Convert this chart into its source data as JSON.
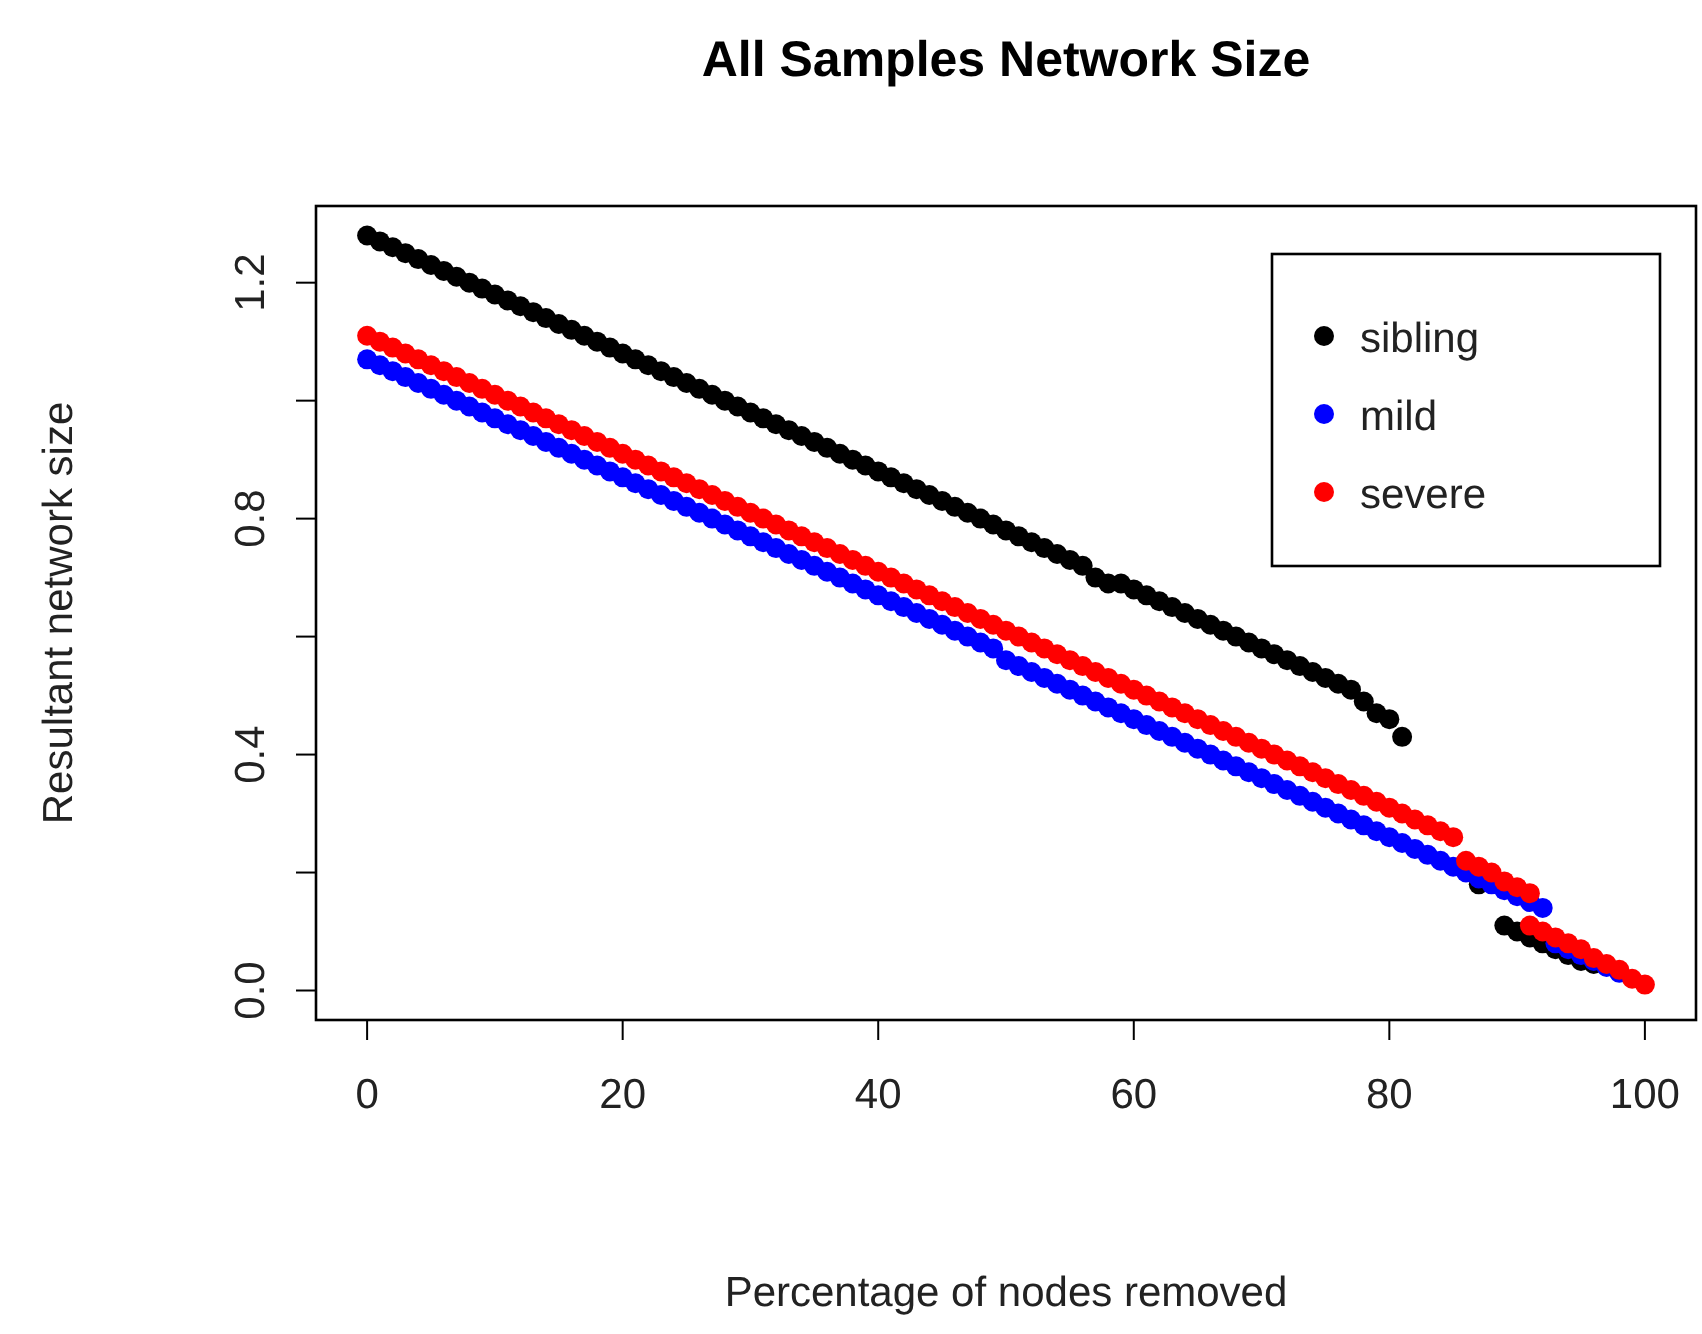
{
  "chart_data": {
    "type": "scatter",
    "title": "All Samples Network Size",
    "xlabel": "Percentage of nodes removed",
    "ylabel": "Resultant network size",
    "xlim": [
      -4,
      104
    ],
    "ylim": [
      -0.05,
      1.33
    ],
    "xticks": [
      0,
      20,
      40,
      60,
      80,
      100
    ],
    "yticks": [
      {
        "value": 0,
        "label": "0.0"
      },
      {
        "value": 0.2,
        "label": null
      },
      0.4,
      {
        "value": 0.6,
        "label": null
      },
      0.8,
      {
        "value": 1.0,
        "label": null
      },
      1.2
    ],
    "grid": false,
    "legend": "top right",
    "marker": "circle",
    "series": [
      {
        "name": "sibling",
        "color": "#000000",
        "x": [
          0,
          1,
          2,
          3,
          4,
          5,
          6,
          7,
          8,
          9,
          10,
          11,
          12,
          13,
          14,
          15,
          16,
          17,
          18,
          19,
          20,
          21,
          22,
          23,
          24,
          25,
          26,
          27,
          28,
          29,
          30,
          31,
          32,
          33,
          34,
          35,
          36,
          37,
          38,
          39,
          40,
          41,
          42,
          43,
          44,
          45,
          46,
          47,
          48,
          49,
          50,
          51,
          52,
          53,
          54,
          55,
          56,
          57,
          58,
          59,
          60,
          61,
          62,
          63,
          64,
          65,
          66,
          67,
          68,
          69,
          70,
          71,
          72,
          73,
          74,
          75,
          76,
          77,
          78,
          79,
          80,
          81,
          87,
          89,
          90,
          91,
          92,
          93,
          94,
          95,
          96
        ],
        "values": [
          1.28,
          1.27,
          1.26,
          1.25,
          1.24,
          1.23,
          1.22,
          1.21,
          1.2,
          1.19,
          1.18,
          1.17,
          1.16,
          1.15,
          1.14,
          1.13,
          1.12,
          1.11,
          1.1,
          1.09,
          1.08,
          1.07,
          1.06,
          1.05,
          1.04,
          1.03,
          1.02,
          1.01,
          1.0,
          0.99,
          0.98,
          0.97,
          0.96,
          0.95,
          0.94,
          0.93,
          0.92,
          0.91,
          0.9,
          0.89,
          0.88,
          0.87,
          0.86,
          0.85,
          0.84,
          0.83,
          0.82,
          0.81,
          0.8,
          0.79,
          0.78,
          0.77,
          0.76,
          0.75,
          0.74,
          0.73,
          0.72,
          0.7,
          0.69,
          0.69,
          0.68,
          0.67,
          0.66,
          0.65,
          0.64,
          0.63,
          0.62,
          0.61,
          0.6,
          0.59,
          0.58,
          0.57,
          0.56,
          0.55,
          0.54,
          0.53,
          0.52,
          0.51,
          0.49,
          0.47,
          0.46,
          0.43,
          0.18,
          0.11,
          0.1,
          0.09,
          0.08,
          0.07,
          0.06,
          0.05,
          0.045
        ]
      },
      {
        "name": "mild",
        "color": "#0000ff",
        "x": [
          0,
          1,
          2,
          3,
          4,
          5,
          6,
          7,
          8,
          9,
          10,
          11,
          12,
          13,
          14,
          15,
          16,
          17,
          18,
          19,
          20,
          21,
          22,
          23,
          24,
          25,
          26,
          27,
          28,
          29,
          30,
          31,
          32,
          33,
          34,
          35,
          36,
          37,
          38,
          39,
          40,
          41,
          42,
          43,
          44,
          45,
          46,
          47,
          48,
          49,
          50,
          51,
          52,
          53,
          54,
          55,
          56,
          57,
          58,
          59,
          60,
          61,
          62,
          63,
          64,
          65,
          66,
          67,
          68,
          69,
          70,
          71,
          72,
          73,
          74,
          75,
          76,
          77,
          78,
          79,
          80,
          81,
          82,
          83,
          84,
          85,
          86,
          87,
          88,
          89,
          90,
          91,
          92,
          93,
          94,
          95,
          96,
          97,
          98
        ],
        "values": [
          1.07,
          1.06,
          1.05,
          1.04,
          1.03,
          1.02,
          1.01,
          1.0,
          0.99,
          0.98,
          0.97,
          0.96,
          0.95,
          0.94,
          0.93,
          0.92,
          0.91,
          0.9,
          0.89,
          0.88,
          0.87,
          0.86,
          0.85,
          0.84,
          0.83,
          0.82,
          0.81,
          0.8,
          0.79,
          0.78,
          0.77,
          0.76,
          0.75,
          0.74,
          0.73,
          0.72,
          0.71,
          0.7,
          0.69,
          0.68,
          0.67,
          0.66,
          0.65,
          0.64,
          0.63,
          0.62,
          0.61,
          0.6,
          0.59,
          0.58,
          0.56,
          0.55,
          0.54,
          0.53,
          0.52,
          0.51,
          0.5,
          0.49,
          0.48,
          0.47,
          0.46,
          0.45,
          0.44,
          0.43,
          0.42,
          0.41,
          0.4,
          0.39,
          0.38,
          0.37,
          0.36,
          0.35,
          0.34,
          0.33,
          0.32,
          0.31,
          0.3,
          0.29,
          0.28,
          0.27,
          0.26,
          0.25,
          0.24,
          0.23,
          0.22,
          0.21,
          0.2,
          0.19,
          0.18,
          0.17,
          0.16,
          0.15,
          0.14,
          0.08,
          0.07,
          0.06,
          0.05,
          0.04,
          0.03
        ]
      },
      {
        "name": "severe",
        "color": "#ff0000",
        "x": [
          0,
          1,
          2,
          3,
          4,
          5,
          6,
          7,
          8,
          9,
          10,
          11,
          12,
          13,
          14,
          15,
          16,
          17,
          18,
          19,
          20,
          21,
          22,
          23,
          24,
          25,
          26,
          27,
          28,
          29,
          30,
          31,
          32,
          33,
          34,
          35,
          36,
          37,
          38,
          39,
          40,
          41,
          42,
          43,
          44,
          45,
          46,
          47,
          48,
          49,
          50,
          51,
          52,
          53,
          54,
          55,
          56,
          57,
          58,
          59,
          60,
          61,
          62,
          63,
          64,
          65,
          66,
          67,
          68,
          69,
          70,
          71,
          72,
          73,
          74,
          75,
          76,
          77,
          78,
          79,
          80,
          81,
          82,
          83,
          84,
          85,
          86,
          87,
          88,
          89,
          90,
          91,
          91,
          92,
          93,
          94,
          95,
          96,
          97,
          98,
          99,
          100
        ],
        "values": [
          1.11,
          1.1,
          1.09,
          1.08,
          1.07,
          1.06,
          1.05,
          1.04,
          1.03,
          1.02,
          1.01,
          1.0,
          0.99,
          0.98,
          0.97,
          0.96,
          0.95,
          0.94,
          0.93,
          0.92,
          0.91,
          0.9,
          0.89,
          0.88,
          0.87,
          0.86,
          0.85,
          0.84,
          0.83,
          0.82,
          0.81,
          0.8,
          0.79,
          0.78,
          0.77,
          0.76,
          0.75,
          0.74,
          0.73,
          0.72,
          0.71,
          0.7,
          0.69,
          0.68,
          0.67,
          0.66,
          0.65,
          0.64,
          0.63,
          0.62,
          0.61,
          0.6,
          0.59,
          0.58,
          0.57,
          0.56,
          0.55,
          0.54,
          0.53,
          0.52,
          0.51,
          0.5,
          0.49,
          0.48,
          0.47,
          0.46,
          0.45,
          0.44,
          0.43,
          0.42,
          0.41,
          0.4,
          0.39,
          0.38,
          0.37,
          0.36,
          0.35,
          0.34,
          0.33,
          0.32,
          0.31,
          0.3,
          0.29,
          0.28,
          0.27,
          0.26,
          0.22,
          0.21,
          0.2,
          0.185,
          0.175,
          0.165,
          0.11,
          0.1,
          0.09,
          0.08,
          0.07,
          0.055,
          0.045,
          0.035,
          0.02,
          0.01
        ]
      }
    ]
  }
}
